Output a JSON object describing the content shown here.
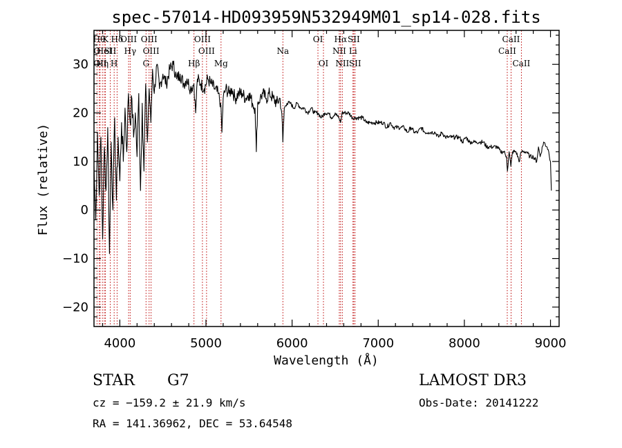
{
  "chart_data": {
    "type": "line",
    "title": "spec-57014-HD093959N532949M01_sp14-028.fits",
    "xlabel": "Wavelength (Å)",
    "ylabel": "Flux (relative)",
    "xlim": [
      3700,
      9100
    ],
    "ylim": [
      -24,
      37
    ],
    "xticks": [
      4000,
      5000,
      6000,
      7000,
      8000,
      9000
    ],
    "yticks": [
      -20,
      -10,
      0,
      10,
      20,
      30
    ],
    "grid": false,
    "series": [
      {
        "name": "spectrum",
        "x": [
          3700,
          3720,
          3740,
          3760,
          3780,
          3800,
          3820,
          3840,
          3860,
          3880,
          3900,
          3920,
          3940,
          3960,
          3980,
          4000,
          4020,
          4040,
          4060,
          4080,
          4100,
          4120,
          4140,
          4160,
          4180,
          4200,
          4220,
          4240,
          4260,
          4280,
          4300,
          4320,
          4340,
          4360,
          4380,
          4400,
          4430,
          4460,
          4500,
          4540,
          4580,
          4620,
          4660,
          4700,
          4740,
          4780,
          4820,
          4860,
          4880,
          4900,
          4940,
          4980,
          5020,
          5060,
          5100,
          5140,
          5170,
          5185,
          5200,
          5230,
          5270,
          5300,
          5340,
          5380,
          5420,
          5460,
          5500,
          5540,
          5570,
          5585,
          5600,
          5630,
          5660,
          5700,
          5740,
          5780,
          5820,
          5860,
          5880,
          5893,
          5910,
          5940,
          5980,
          6020,
          6060,
          6100,
          6140,
          6180,
          6220,
          6260,
          6300,
          6340,
          6380,
          6420,
          6460,
          6500,
          6540,
          6563,
          6580,
          6620,
          6660,
          6700,
          6740,
          6780,
          6820,
          6860,
          6900,
          6940,
          6980,
          7020,
          7060,
          7100,
          7140,
          7180,
          7220,
          7260,
          7300,
          7340,
          7380,
          7420,
          7460,
          7500,
          7540,
          7580,
          7620,
          7660,
          7700,
          7740,
          7780,
          7820,
          7860,
          7900,
          7940,
          7980,
          8020,
          8060,
          8100,
          8140,
          8180,
          8220,
          8260,
          8300,
          8340,
          8380,
          8420,
          8460,
          8490,
          8500,
          8520,
          8540,
          8560,
          8600,
          8640,
          8660,
          8680,
          8720,
          8760,
          8800,
          8840,
          8860,
          8880,
          8920,
          8960,
          8980,
          9000,
          9010
        ],
        "y": [
          9,
          -2,
          16,
          3,
          15,
          -6,
          13,
          4,
          17,
          -9,
          14,
          0,
          19,
          2,
          15,
          6,
          18,
          10,
          21,
          12,
          24,
          18,
          23,
          15,
          20,
          11,
          24,
          4,
          22,
          8,
          26,
          14,
          25,
          18,
          29,
          24,
          30,
          25,
          28,
          26,
          29,
          30,
          27,
          28,
          26,
          27,
          25,
          26,
          20,
          27,
          26,
          25,
          27,
          26,
          25,
          24,
          22,
          16,
          23,
          25,
          24,
          25,
          23,
          24,
          24,
          23,
          24,
          22,
          21,
          12,
          22,
          23,
          24,
          23,
          24,
          23,
          22,
          23,
          20,
          14,
          21,
          22,
          22,
          21,
          22,
          21,
          21,
          20,
          21,
          20,
          20,
          19,
          20,
          20,
          19,
          20,
          19,
          18,
          20,
          20,
          20,
          19,
          19,
          19,
          19,
          18,
          18,
          18,
          18,
          18,
          18,
          17,
          18,
          17,
          17,
          17,
          17,
          16,
          17,
          16,
          16,
          17,
          16,
          16,
          16,
          16,
          15,
          16,
          15,
          15,
          15,
          15,
          15,
          14,
          15,
          14,
          14,
          14,
          14,
          14,
          13,
          13,
          13,
          13,
          12,
          12,
          11,
          8,
          12,
          9,
          12,
          12,
          10,
          12,
          12,
          12,
          11,
          11,
          10,
          13,
          11,
          14,
          13,
          12,
          10,
          4
        ]
      }
    ],
    "annotations": [
      {
        "wavelength": 3735,
        "row": 1,
        "label": "O"
      },
      {
        "wavelength": 3760,
        "row": 0,
        "label": "Hθ"
      },
      {
        "wavelength": 3772,
        "row": 2,
        "label": "OII"
      },
      {
        "wavelength": 3798,
        "row": 2,
        "label": "Hη"
      },
      {
        "wavelength": 3820,
        "row": 1,
        "label": "HeI"
      },
      {
        "wavelength": 3833,
        "row": 0,
        "label": "K"
      },
      {
        "wavelength": 3889,
        "row": 1,
        "label": "SII"
      },
      {
        "wavelength": 3934,
        "row": 2,
        "label": "H"
      },
      {
        "wavelength": 3968,
        "row": 0,
        "label": "Hδ"
      },
      {
        "wavelength": 4102,
        "row": 0,
        "label": "OIII"
      },
      {
        "wavelength": 4120,
        "row": 1,
        "label": "Hγ"
      },
      {
        "wavelength": 4304,
        "row": 2,
        "label": "G"
      },
      {
        "wavelength": 4340,
        "row": 0,
        "label": "OIII"
      },
      {
        "wavelength": 4363,
        "row": 1,
        "label": "OIII"
      },
      {
        "wavelength": 4861,
        "row": 2,
        "label": "Hβ"
      },
      {
        "wavelength": 4959,
        "row": 0,
        "label": "OIII"
      },
      {
        "wavelength": 5007,
        "row": 1,
        "label": "OIII"
      },
      {
        "wavelength": 5175,
        "row": 2,
        "label": "Mg"
      },
      {
        "wavelength": 5893,
        "row": 1,
        "label": "Na"
      },
      {
        "wavelength": 6300,
        "row": 0,
        "label": "OI"
      },
      {
        "wavelength": 6364,
        "row": 2,
        "label": "OI"
      },
      {
        "wavelength": 6548,
        "row": 1,
        "label": "NII"
      },
      {
        "wavelength": 6563,
        "row": 0,
        "label": "Hα"
      },
      {
        "wavelength": 6583,
        "row": 2,
        "label": "NII"
      },
      {
        "wavelength": 6716,
        "row": 0,
        "label": "SII"
      },
      {
        "wavelength": 6707,
        "row": 1,
        "label": "Li"
      },
      {
        "wavelength": 6731,
        "row": 2,
        "label": "SII"
      },
      {
        "wavelength": 8498,
        "row": 1,
        "label": "CaII"
      },
      {
        "wavelength": 8542,
        "row": 0,
        "label": "CaII"
      },
      {
        "wavelength": 8662,
        "row": 2,
        "label": "CaII"
      }
    ]
  },
  "info": {
    "object_class": "STAR",
    "subclass": "G7",
    "cz": "cz = −159.2 ± 21.9 km/s",
    "coords": "RA = 141.36962, DEC =  53.64548",
    "survey": "LAMOST DR3",
    "obs_date": "Obs-Date: 20141222"
  }
}
